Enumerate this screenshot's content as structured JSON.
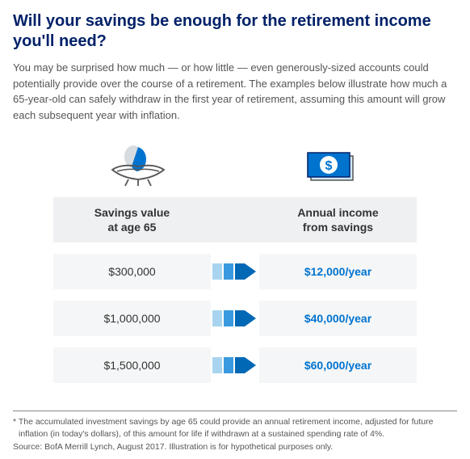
{
  "headline": "Will your savings be enough for the retirement income you'll need?",
  "intro": "You may be surprised how much — or how little — even generously-sized accounts could potentially provide over the course of a retirement. The examples below illustrate how much a 65-year-old can safely withdraw in the first year of retirement, assuming this amount will grow each subsequent year with inflation.",
  "columns": {
    "savings_header": "Savings value\nat age 65",
    "income_header": "Annual income\nfrom savings"
  },
  "rows": [
    {
      "savings": "$300,000",
      "income": "$12,000/year"
    },
    {
      "savings": "$1,000,000",
      "income": "$40,000/year"
    },
    {
      "savings": "$1,500,000",
      "income": "$60,000/year"
    }
  ],
  "footnote": "* The accumulated investment savings by age 65 could provide an annual retirement income, adjusted for future inflation (in today's dollars), of this amount for life if withdrawn at a sustained spending rate of 4%.",
  "source": "Source: BofA Merrill Lynch, August 2017. Illustration is for hypothetical purposes only.",
  "colors": {
    "brand_navy": "#012169",
    "brand_blue": "#0073cf",
    "light_gray": "#f5f6f7",
    "mid_gray": "#eef0f2",
    "arrow_dark": "#0068b5",
    "arrow_mid": "#3a9adf",
    "arrow_light": "#a8d4f0"
  }
}
